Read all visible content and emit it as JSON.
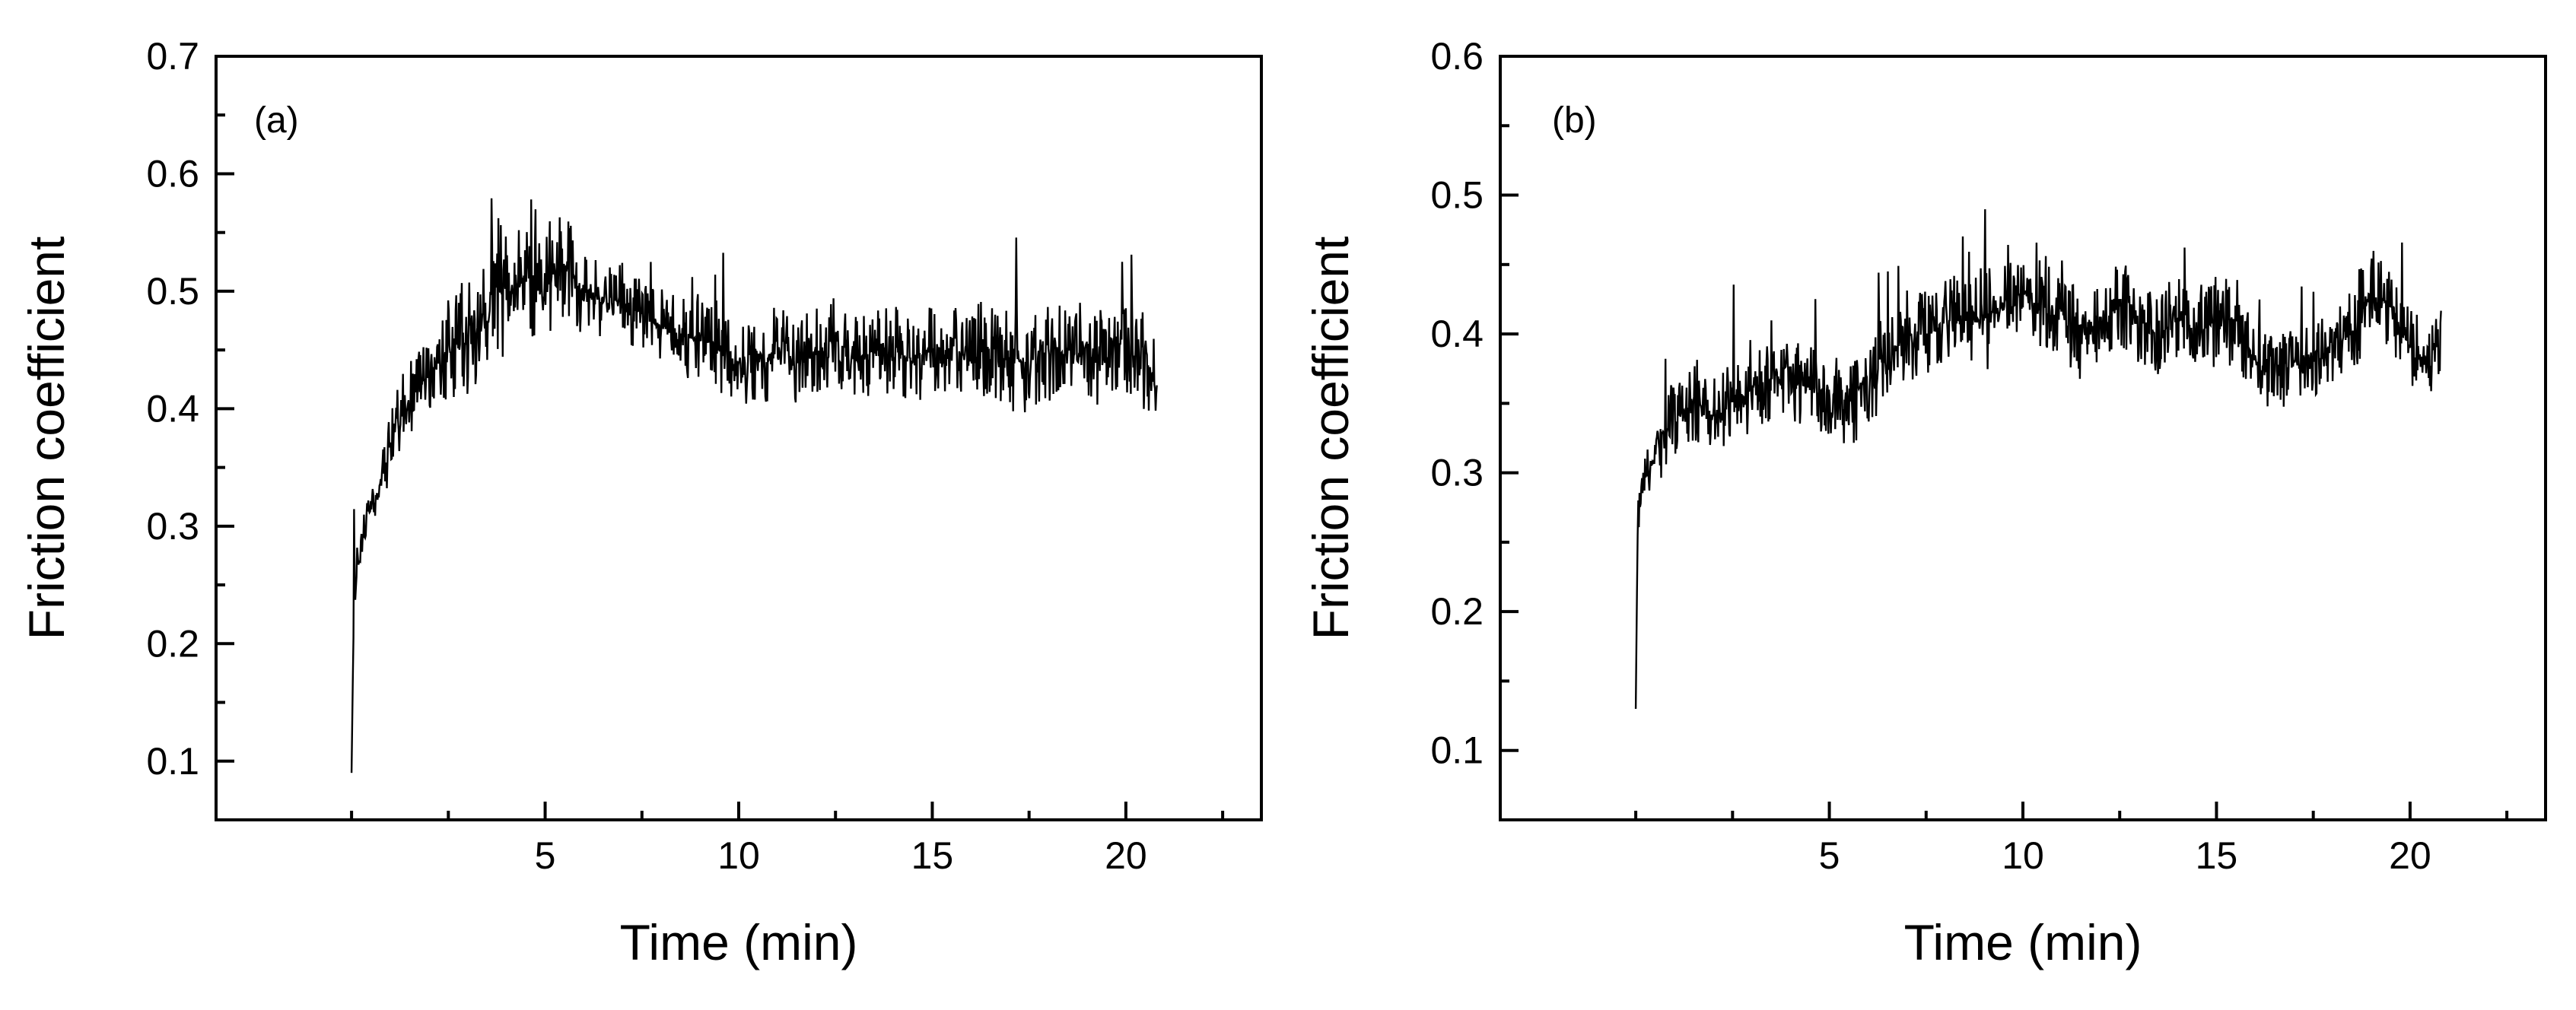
{
  "chart_data": [
    {
      "type": "line",
      "panel_label": "(a)",
      "xlabel": "Time (min)",
      "ylabel": "Friction coefficient",
      "xlim": [
        -3.5,
        23.5
      ],
      "ylim": [
        0.05,
        0.7
      ],
      "xticks": [
        5,
        10,
        15,
        20
      ],
      "yticks": [
        0.1,
        0.2,
        0.3,
        0.4,
        0.5,
        0.6,
        0.7
      ],
      "xtick_labels": [
        "5",
        "10",
        "15",
        "20"
      ],
      "ytick_labels": [
        "0.1",
        "0.2",
        "0.3",
        "0.4",
        "0.5",
        "0.6",
        "0.7"
      ],
      "grid": false,
      "legend": "none",
      "series": [
        {
          "color": "#000000",
          "x": [
            0.0,
            0.05,
            0.15,
            0.3,
            0.5,
            0.8,
            1.0,
            1.3,
            1.6,
            2.0,
            2.5,
            3.0,
            3.5,
            3.8,
            4.2,
            4.6,
            5.0,
            5.3,
            5.6,
            6.0,
            6.5,
            7.0,
            7.5,
            8.0,
            8.5,
            9.0,
            9.5,
            10.0,
            10.5,
            11.0,
            11.5,
            12.0,
            12.5,
            13.0,
            13.5,
            14.0,
            14.5,
            15.0,
            15.5,
            16.0,
            16.5,
            17.0,
            17.5,
            18.0,
            18.5,
            19.0,
            19.5,
            20.0,
            20.5,
            20.8
          ],
          "y": [
            0.09,
            0.21,
            0.27,
            0.3,
            0.32,
            0.34,
            0.37,
            0.4,
            0.41,
            0.43,
            0.45,
            0.46,
            0.48,
            0.5,
            0.5,
            0.51,
            0.5,
            0.52,
            0.52,
            0.5,
            0.49,
            0.49,
            0.48,
            0.47,
            0.46,
            0.46,
            0.45,
            0.44,
            0.44,
            0.45,
            0.44,
            0.45,
            0.46,
            0.44,
            0.45,
            0.45,
            0.44,
            0.45,
            0.45,
            0.44,
            0.45,
            0.44,
            0.44,
            0.45,
            0.45,
            0.44,
            0.45,
            0.45,
            0.44,
            0.42
          ],
          "noise": [
            0.0,
            0.08,
            0.05,
            0.04,
            0.04,
            0.05,
            0.05,
            0.06,
            0.06,
            0.07,
            0.08,
            0.09,
            0.1,
            0.12,
            0.09,
            0.09,
            0.09,
            0.1,
            0.08,
            0.07,
            0.06,
            0.06,
            0.06,
            0.06,
            0.06,
            0.07,
            0.07,
            0.07,
            0.07,
            0.07,
            0.07,
            0.08,
            0.07,
            0.07,
            0.07,
            0.07,
            0.07,
            0.07,
            0.07,
            0.07,
            0.07,
            0.08,
            0.08,
            0.08,
            0.08,
            0.08,
            0.08,
            0.08,
            0.08,
            0.08
          ]
        }
      ]
    },
    {
      "type": "line",
      "panel_label": "(b)",
      "xlabel": "Time (min)",
      "ylabel": "Friction coefficient",
      "xlim": [
        -3.5,
        23.5
      ],
      "ylim": [
        0.05,
        0.6
      ],
      "xticks": [
        5,
        10,
        15,
        20
      ],
      "yticks": [
        0.1,
        0.2,
        0.3,
        0.4,
        0.5,
        0.6
      ],
      "xtick_labels": [
        "5",
        "10",
        "15",
        "20"
      ],
      "ytick_labels": [
        "0.1",
        "0.2",
        "0.3",
        "0.4",
        "0.5",
        "0.6"
      ],
      "grid": false,
      "legend": "none",
      "series": [
        {
          "color": "#000000",
          "x": [
            0.0,
            0.05,
            0.15,
            0.3,
            0.5,
            0.8,
            1.0,
            1.5,
            2.0,
            2.5,
            3.0,
            3.5,
            4.0,
            4.5,
            5.0,
            5.5,
            6.0,
            6.5,
            7.0,
            7.5,
            8.0,
            8.5,
            9.0,
            9.5,
            10.0,
            10.5,
            11.0,
            11.5,
            12.0,
            12.5,
            13.0,
            13.5,
            14.0,
            14.5,
            15.0,
            15.5,
            16.0,
            16.5,
            17.0,
            17.5,
            18.0,
            18.5,
            19.0,
            19.5,
            20.0,
            20.5,
            20.8
          ],
          "y": [
            0.13,
            0.26,
            0.29,
            0.3,
            0.31,
            0.33,
            0.34,
            0.35,
            0.34,
            0.35,
            0.36,
            0.37,
            0.37,
            0.36,
            0.36,
            0.35,
            0.37,
            0.38,
            0.4,
            0.4,
            0.41,
            0.41,
            0.41,
            0.42,
            0.43,
            0.42,
            0.41,
            0.4,
            0.41,
            0.42,
            0.41,
            0.4,
            0.41,
            0.4,
            0.41,
            0.41,
            0.38,
            0.37,
            0.38,
            0.38,
            0.39,
            0.4,
            0.43,
            0.42,
            0.39,
            0.38,
            0.4
          ],
          "noise": [
            0.0,
            0.05,
            0.03,
            0.03,
            0.04,
            0.05,
            0.05,
            0.05,
            0.05,
            0.06,
            0.07,
            0.06,
            0.06,
            0.06,
            0.06,
            0.06,
            0.07,
            0.06,
            0.06,
            0.06,
            0.06,
            0.06,
            0.07,
            0.06,
            0.06,
            0.06,
            0.06,
            0.06,
            0.06,
            0.06,
            0.06,
            0.06,
            0.06,
            0.06,
            0.06,
            0.06,
            0.05,
            0.05,
            0.05,
            0.05,
            0.05,
            0.06,
            0.06,
            0.06,
            0.05,
            0.05,
            0.05
          ]
        }
      ]
    }
  ]
}
